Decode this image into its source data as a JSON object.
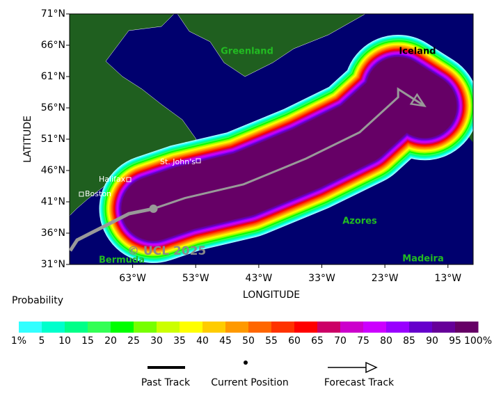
{
  "chart_data": {
    "type": "track-map",
    "xlabel": "LONGITUDE",
    "ylabel": "LATITUDE",
    "xlim": [
      -73,
      -9
    ],
    "ylim": [
      31,
      71
    ],
    "xticks": [
      {
        "value": -63,
        "label": "63°W"
      },
      {
        "value": -53,
        "label": "53°W"
      },
      {
        "value": -43,
        "label": "43°W"
      },
      {
        "value": -33,
        "label": "33°W"
      },
      {
        "value": -23,
        "label": "23°W"
      },
      {
        "value": -13,
        "label": "13°W"
      }
    ],
    "yticks": [
      {
        "value": 31,
        "label": "31°N"
      },
      {
        "value": 36,
        "label": "36°N"
      },
      {
        "value": 41,
        "label": "41°N"
      },
      {
        "value": 46,
        "label": "46°N"
      },
      {
        "value": 51,
        "label": "51°N"
      },
      {
        "value": 56,
        "label": "56°N"
      },
      {
        "value": 61,
        "label": "61°N"
      },
      {
        "value": 66,
        "label": "66°N"
      },
      {
        "value": 71,
        "label": "71°N"
      }
    ],
    "places": [
      "Greenland",
      "Iceland",
      "St. John's",
      "Halifax",
      "Boston",
      "Azores",
      "Bermuda",
      "Madeira"
    ],
    "watermark": "© UCL 2025",
    "past_track": {
      "name": "Past Track",
      "color": "#999999",
      "lon": [
        -72.9,
        -71.8,
        -66.9,
        -63.6,
        -59.7
      ],
      "lat": [
        33.2,
        34.9,
        37.4,
        39.1,
        39.9
      ]
    },
    "current_position": {
      "name": "Current Position",
      "color": "#999999",
      "lon": -59.7,
      "lat": 39.9
    },
    "forecast_track": {
      "name": "Forecast Track",
      "color": "#999999",
      "lon": [
        -59.7,
        -54.7,
        -45.4,
        -35.5,
        -27.0,
        -20.9,
        -20.9,
        -16.7
      ],
      "lat": [
        39.9,
        41.6,
        43.8,
        47.9,
        52.1,
        57.7,
        59.0,
        56.3
      ]
    },
    "colorbar": {
      "title": "Probability",
      "levels": [
        {
          "value": 1,
          "label": "1%"
        },
        5,
        10,
        15,
        20,
        25,
        30,
        35,
        40,
        45,
        50,
        55,
        60,
        65,
        70,
        75,
        80,
        85,
        90,
        95,
        {
          "value": 100,
          "label": "100%"
        }
      ],
      "colors": [
        "#99ffff",
        "#33ffff",
        "#00ffcc",
        "#00ff88",
        "#33ff55",
        "#00ff00",
        "#77ff00",
        "#ccff00",
        "#ffff00",
        "#ffcc00",
        "#ff9900",
        "#ff6600",
        "#ff3300",
        "#ff0000",
        "#cc0066",
        "#cc00cc",
        "#cc00ff",
        "#9900ff",
        "#6600cc",
        "#660099",
        "#660066"
      ]
    }
  }
}
